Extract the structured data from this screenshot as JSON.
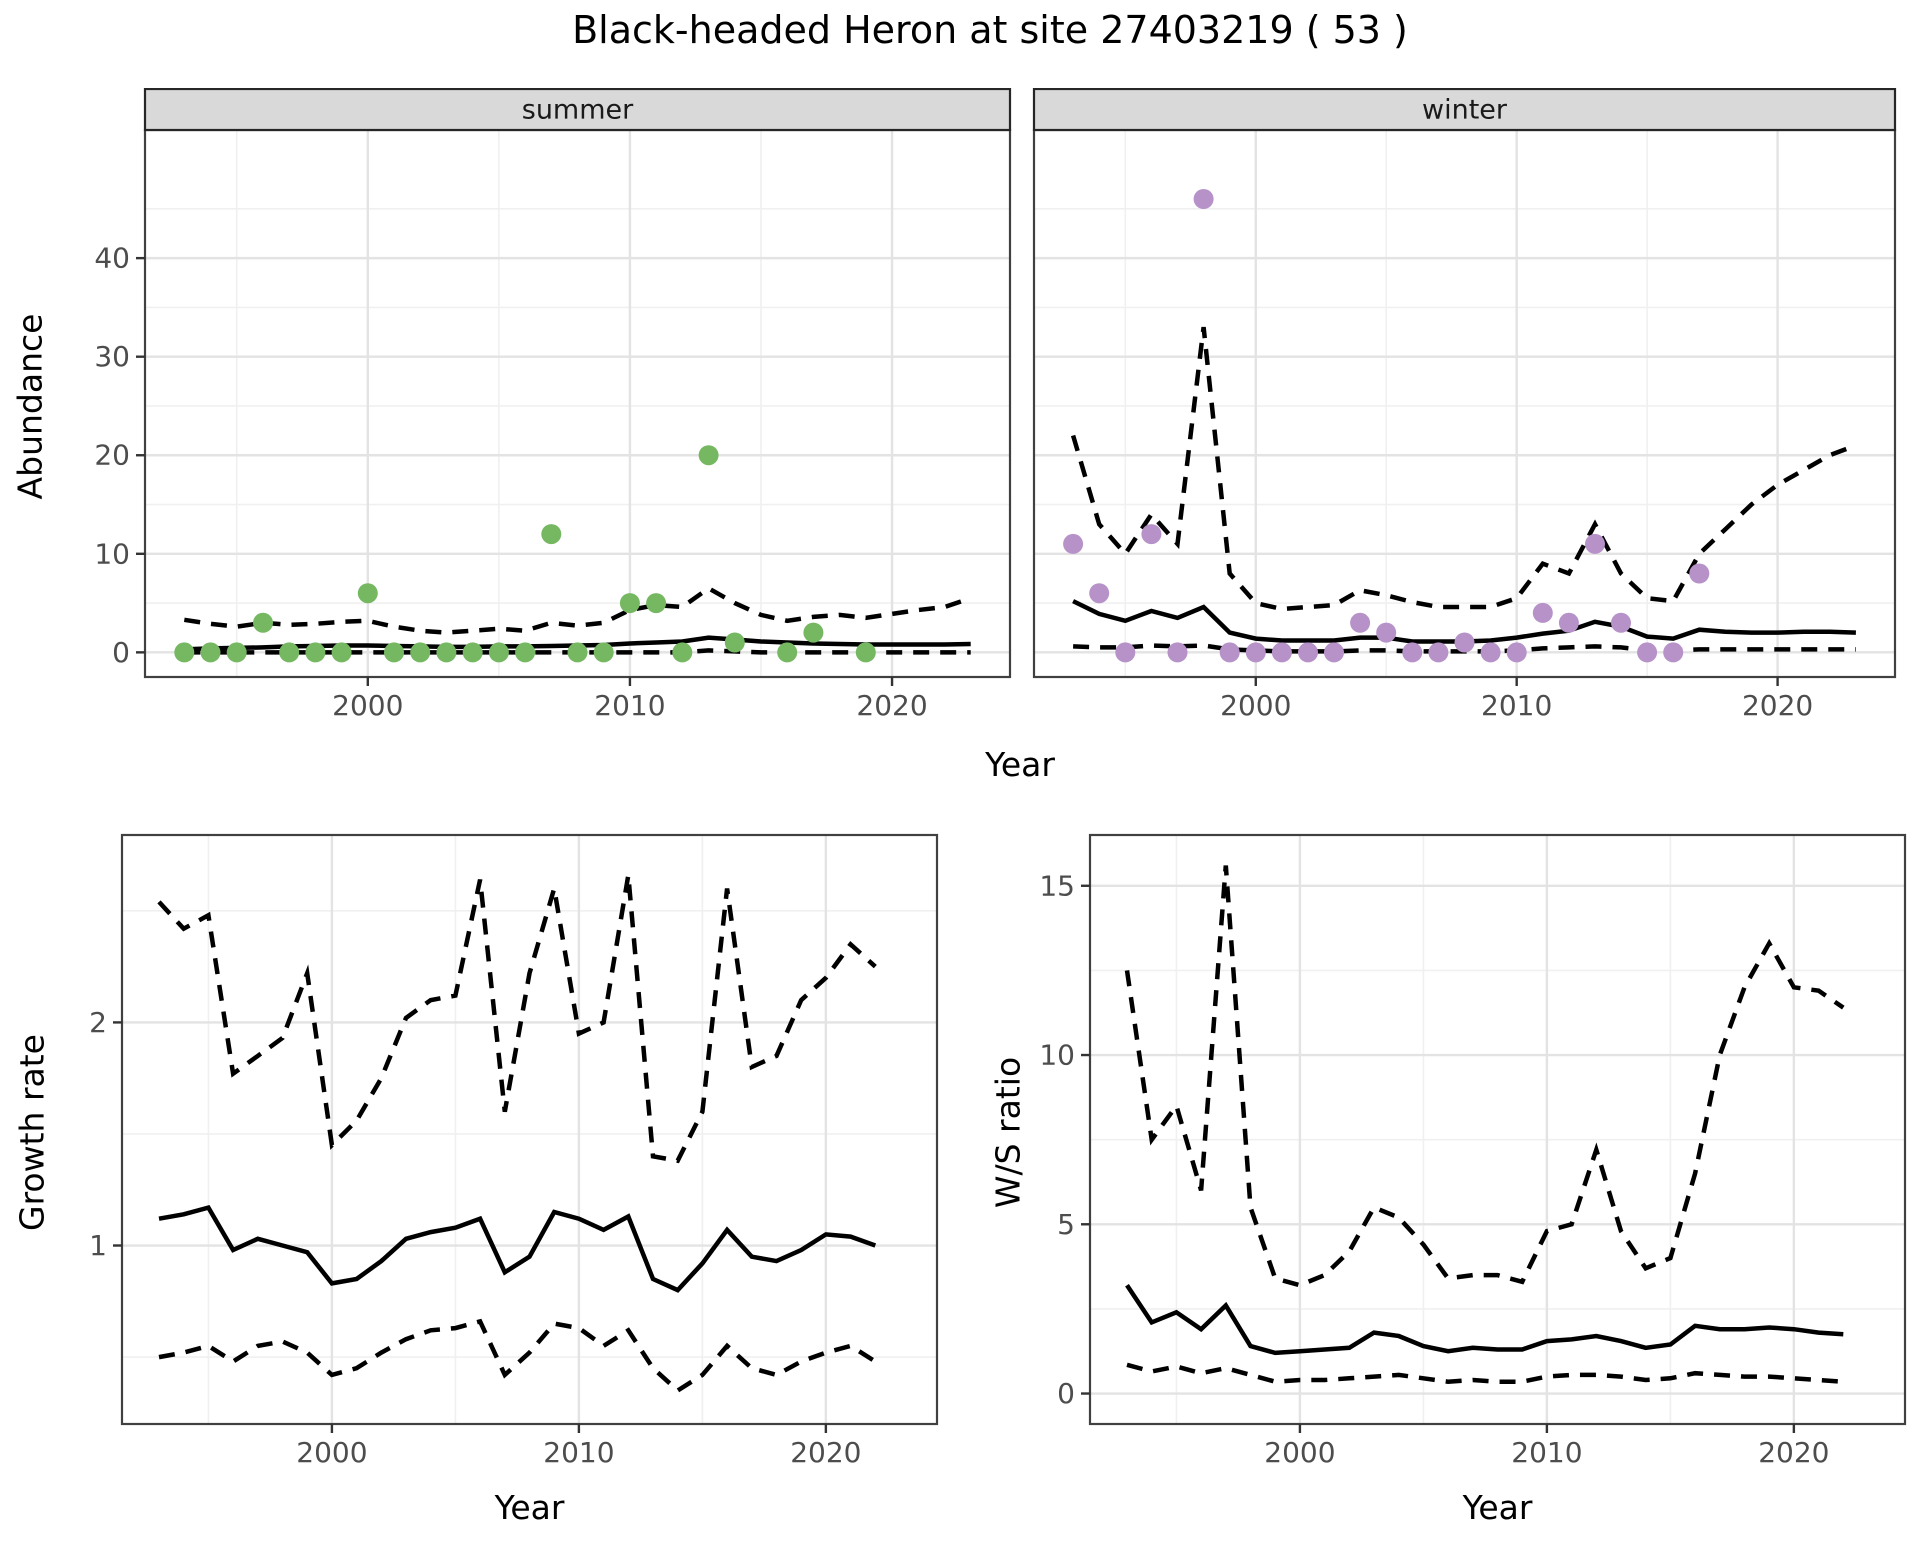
{
  "title": "Black-headed Heron at site 27403219 ( 53 )",
  "labels": {
    "x_axis": "Year",
    "abundance": "Abundance",
    "growth": "Growth rate",
    "ws": "W/S ratio"
  },
  "colors": {
    "summer_point": "#76b862",
    "winter_point": "#b692c8",
    "line": "#000000",
    "strip_bg": "#d9d9d9",
    "strip_border": "#262626",
    "grid_major": "#e3e3e3",
    "grid_minor": "#f0f0f0",
    "panel_border": "#404040",
    "tick_label": "#4d4d4d"
  },
  "chart_data": [
    {
      "id": "summer",
      "type": "scatter",
      "facet_label": "summer",
      "xlabel": "Year",
      "ylabel": "Abundance",
      "xlim": [
        1991.5,
        2024.5
      ],
      "ylim": [
        -2.5,
        53
      ],
      "xticks": [
        2000,
        2010,
        2020
      ],
      "xminor": [
        1995,
        2005,
        2015
      ],
      "yticks": [
        0,
        10,
        20,
        30,
        40
      ],
      "yminor": [
        5,
        15,
        25,
        35,
        45
      ],
      "show_ylabels": true,
      "point_color_key": "summer_point",
      "points": {
        "x": [
          1993,
          1994,
          1995,
          1996,
          1997,
          1998,
          1999,
          2000,
          2001,
          2002,
          2003,
          2004,
          2005,
          2006,
          2007,
          2008,
          2009,
          2010,
          2011,
          2012,
          2013,
          2014,
          2016,
          2017,
          2019
        ],
        "y": [
          0,
          0,
          0,
          3,
          0,
          0,
          0,
          6,
          0,
          0,
          0,
          0,
          0,
          0,
          12,
          0,
          0,
          5,
          5,
          0,
          20,
          1,
          0,
          2,
          0
        ]
      },
      "series": [
        {
          "name": "median",
          "style": "solid",
          "x": [
            1993,
            1994,
            1995,
            1996,
            1997,
            1998,
            1999,
            2000,
            2001,
            2002,
            2003,
            2004,
            2005,
            2006,
            2007,
            2008,
            2009,
            2010,
            2011,
            2012,
            2013,
            2014,
            2015,
            2016,
            2017,
            2018,
            2019,
            2020,
            2021,
            2022,
            2023
          ],
          "y": [
            0.3,
            0.4,
            0.45,
            0.5,
            0.6,
            0.65,
            0.7,
            0.7,
            0.65,
            0.6,
            0.55,
            0.55,
            0.6,
            0.6,
            0.65,
            0.7,
            0.75,
            0.9,
            1.0,
            1.1,
            1.5,
            1.3,
            1.1,
            1.0,
            0.9,
            0.85,
            0.8,
            0.8,
            0.8,
            0.8,
            0.85
          ]
        },
        {
          "name": "upper_ci",
          "style": "dashed",
          "x": [
            1993,
            1994,
            1995,
            1996,
            1997,
            1998,
            1999,
            2000,
            2001,
            2002,
            2003,
            2004,
            2005,
            2006,
            2007,
            2008,
            2009,
            2010,
            2011,
            2012,
            2013,
            2014,
            2015,
            2016,
            2017,
            2018,
            2019,
            2020,
            2021,
            2022,
            2023
          ],
          "y": [
            3.3,
            2.9,
            2.6,
            3.0,
            2.8,
            2.9,
            3.1,
            3.2,
            2.6,
            2.2,
            2.0,
            2.2,
            2.4,
            2.2,
            3.0,
            2.7,
            3.0,
            4.3,
            4.8,
            4.6,
            6.5,
            5.0,
            3.8,
            3.2,
            3.6,
            3.8,
            3.5,
            3.9,
            4.3,
            4.6,
            5.5
          ]
        },
        {
          "name": "lower_ci",
          "style": "dashed",
          "x": [
            1993,
            1994,
            1995,
            1996,
            1997,
            1998,
            1999,
            2000,
            2001,
            2002,
            2003,
            2004,
            2005,
            2006,
            2007,
            2008,
            2009,
            2010,
            2011,
            2012,
            2013,
            2014,
            2015,
            2016,
            2017,
            2018,
            2019,
            2020,
            2021,
            2022,
            2023
          ],
          "y": [
            0,
            0,
            0,
            0,
            0,
            0,
            0,
            0,
            0,
            0,
            0,
            0,
            0,
            0,
            0,
            0,
            0,
            0,
            0,
            0,
            0.2,
            0.1,
            0,
            0,
            0,
            0,
            0,
            0,
            0,
            0,
            0
          ]
        }
      ]
    },
    {
      "id": "winter",
      "type": "scatter",
      "facet_label": "winter",
      "xlabel": "Year",
      "ylabel": "Abundance",
      "xlim": [
        1991.5,
        2024.5
      ],
      "ylim": [
        -2.5,
        53
      ],
      "xticks": [
        2000,
        2010,
        2020
      ],
      "xminor": [
        1995,
        2005,
        2015
      ],
      "yticks": [
        0,
        10,
        20,
        30,
        40
      ],
      "yminor": [
        5,
        15,
        25,
        35,
        45
      ],
      "show_ylabels": false,
      "point_color_key": "winter_point",
      "points": {
        "x": [
          1993,
          1994,
          1995,
          1996,
          1997,
          1998,
          1999,
          2000,
          2001,
          2002,
          2003,
          2004,
          2005,
          2006,
          2007,
          2008,
          2009,
          2010,
          2011,
          2012,
          2013,
          2014,
          2015,
          2016,
          2017
        ],
        "y": [
          11,
          6,
          0,
          12,
          0,
          46,
          0,
          0,
          0,
          0,
          0,
          3,
          2,
          0,
          0,
          1,
          0,
          0,
          4,
          3,
          11,
          3,
          0,
          0,
          8
        ]
      },
      "series": [
        {
          "name": "median",
          "style": "solid",
          "x": [
            1993,
            1994,
            1995,
            1996,
            1997,
            1998,
            1999,
            2000,
            2001,
            2002,
            2003,
            2004,
            2005,
            2006,
            2007,
            2008,
            2009,
            2010,
            2011,
            2012,
            2013,
            2014,
            2015,
            2016,
            2017,
            2018,
            2019,
            2020,
            2021,
            2022,
            2023
          ],
          "y": [
            5.2,
            3.9,
            3.2,
            4.2,
            3.5,
            4.6,
            2.0,
            1.4,
            1.2,
            1.2,
            1.2,
            1.5,
            1.5,
            1.1,
            1.1,
            1.1,
            1.2,
            1.5,
            1.9,
            2.2,
            3.1,
            2.6,
            1.6,
            1.4,
            2.3,
            2.1,
            2.0,
            2.0,
            2.1,
            2.1,
            2.0
          ]
        },
        {
          "name": "upper_ci",
          "style": "dashed",
          "x": [
            1993,
            1994,
            1995,
            1996,
            1997,
            1998,
            1999,
            2000,
            2001,
            2002,
            2003,
            2004,
            2005,
            2006,
            2007,
            2008,
            2009,
            2010,
            2011,
            2012,
            2013,
            2014,
            2015,
            2016,
            2017,
            2018,
            2019,
            2020,
            2021,
            2022,
            2023
          ],
          "y": [
            22,
            13,
            10,
            14,
            11,
            33,
            8,
            5,
            4.4,
            4.6,
            4.8,
            6.3,
            5.8,
            5.1,
            4.6,
            4.6,
            4.6,
            5.5,
            9,
            8,
            13,
            8,
            5.5,
            5.2,
            10,
            12.5,
            15,
            17,
            18.5,
            20,
            21
          ]
        },
        {
          "name": "lower_ci",
          "style": "dashed",
          "x": [
            1993,
            1994,
            1995,
            1996,
            1997,
            1998,
            1999,
            2000,
            2001,
            2002,
            2003,
            2004,
            2005,
            2006,
            2007,
            2008,
            2009,
            2010,
            2011,
            2012,
            2013,
            2014,
            2015,
            2016,
            2017,
            2018,
            2019,
            2020,
            2021,
            2022,
            2023
          ],
          "y": [
            0.6,
            0.5,
            0.5,
            0.7,
            0.6,
            0.7,
            0.3,
            0.2,
            0.1,
            0.1,
            0.1,
            0.2,
            0.2,
            0.1,
            0.1,
            0.1,
            0.1,
            0.2,
            0.4,
            0.5,
            0.6,
            0.5,
            0.2,
            0.2,
            0.3,
            0.3,
            0.3,
            0.3,
            0.3,
            0.3,
            0.3
          ]
        }
      ]
    },
    {
      "id": "growth",
      "type": "line",
      "facet_label": "",
      "xlabel": "Year",
      "ylabel": "Growth rate",
      "xlim": [
        1991.5,
        2024.5
      ],
      "ylim": [
        0.2,
        2.84
      ],
      "xticks": [
        2000,
        2010,
        2020
      ],
      "xminor": [
        1995,
        2005,
        2015
      ],
      "yticks": [
        1,
        2
      ],
      "yminor": [
        0.5,
        1.5,
        2.5
      ],
      "show_ylabels": true,
      "series": [
        {
          "name": "median",
          "style": "solid",
          "x": [
            1993,
            1994,
            1995,
            1996,
            1997,
            1998,
            1999,
            2000,
            2001,
            2002,
            2003,
            2004,
            2005,
            2006,
            2007,
            2008,
            2009,
            2010,
            2011,
            2012,
            2013,
            2014,
            2015,
            2016,
            2017,
            2018,
            2019,
            2020,
            2021,
            2022
          ],
          "y": [
            1.12,
            1.14,
            1.17,
            0.98,
            1.03,
            1.0,
            0.97,
            0.83,
            0.85,
            0.93,
            1.03,
            1.06,
            1.08,
            1.12,
            0.88,
            0.95,
            1.15,
            1.12,
            1.07,
            1.13,
            0.85,
            0.8,
            0.92,
            1.07,
            0.95,
            0.93,
            0.98,
            1.05,
            1.04,
            1.0
          ]
        },
        {
          "name": "upper_ci",
          "style": "dashed",
          "x": [
            1993,
            1994,
            1995,
            1996,
            1997,
            1998,
            1999,
            2000,
            2001,
            2002,
            2003,
            2004,
            2005,
            2006,
            2007,
            2008,
            2009,
            2010,
            2011,
            2012,
            2013,
            2014,
            2015,
            2016,
            2017,
            2018,
            2019,
            2020,
            2021,
            2022
          ],
          "y": [
            2.54,
            2.42,
            2.48,
            1.77,
            1.85,
            1.93,
            2.22,
            1.45,
            1.56,
            1.75,
            2.02,
            2.1,
            2.12,
            2.64,
            1.6,
            2.22,
            2.6,
            1.95,
            2.0,
            2.66,
            1.4,
            1.38,
            1.6,
            2.6,
            1.8,
            1.85,
            2.1,
            2.2,
            2.35,
            2.25
          ]
        },
        {
          "name": "lower_ci",
          "style": "dashed",
          "x": [
            1993,
            1994,
            1995,
            1996,
            1997,
            1998,
            1999,
            2000,
            2001,
            2002,
            2003,
            2004,
            2005,
            2006,
            2007,
            2008,
            2009,
            2010,
            2011,
            2012,
            2013,
            2014,
            2015,
            2016,
            2017,
            2018,
            2019,
            2020,
            2021,
            2022
          ],
          "y": [
            0.5,
            0.52,
            0.55,
            0.48,
            0.55,
            0.57,
            0.52,
            0.42,
            0.45,
            0.52,
            0.58,
            0.62,
            0.63,
            0.66,
            0.42,
            0.52,
            0.65,
            0.63,
            0.55,
            0.62,
            0.45,
            0.35,
            0.42,
            0.55,
            0.45,
            0.42,
            0.48,
            0.52,
            0.55,
            0.48
          ]
        }
      ]
    },
    {
      "id": "ws",
      "type": "line",
      "facet_label": "",
      "xlabel": "Year",
      "ylabel": "W/S ratio",
      "xlim": [
        1991.5,
        2024.5
      ],
      "ylim": [
        -0.9,
        16.5
      ],
      "xticks": [
        2000,
        2010,
        2020
      ],
      "xminor": [
        1995,
        2005,
        2015
      ],
      "yticks": [
        0,
        5,
        10,
        15
      ],
      "yminor": [
        2.5,
        7.5,
        12.5
      ],
      "show_ylabels": true,
      "series": [
        {
          "name": "median",
          "style": "solid",
          "x": [
            1993,
            1994,
            1995,
            1996,
            1997,
            1998,
            1999,
            2000,
            2001,
            2002,
            2003,
            2004,
            2005,
            2006,
            2007,
            2008,
            2009,
            2010,
            2011,
            2012,
            2013,
            2014,
            2015,
            2016,
            2017,
            2018,
            2019,
            2020,
            2021,
            2022
          ],
          "y": [
            3.2,
            2.1,
            2.4,
            1.9,
            2.6,
            1.4,
            1.2,
            1.25,
            1.3,
            1.35,
            1.8,
            1.7,
            1.4,
            1.25,
            1.35,
            1.3,
            1.3,
            1.55,
            1.6,
            1.7,
            1.55,
            1.35,
            1.45,
            2.0,
            1.9,
            1.9,
            1.95,
            1.9,
            1.8,
            1.75
          ]
        },
        {
          "name": "upper_ci",
          "style": "dashed",
          "x": [
            1993,
            1994,
            1995,
            1996,
            1997,
            1998,
            1999,
            2000,
            2001,
            2002,
            2003,
            2004,
            2005,
            2006,
            2007,
            2008,
            2009,
            2010,
            2011,
            2012,
            2013,
            2014,
            2015,
            2016,
            2017,
            2018,
            2019,
            2020,
            2021,
            2022
          ],
          "y": [
            12.5,
            7.5,
            8.5,
            6.0,
            15.6,
            5.5,
            3.4,
            3.2,
            3.5,
            4.2,
            5.5,
            5.2,
            4.4,
            3.4,
            3.5,
            3.5,
            3.3,
            4.8,
            5.0,
            7.2,
            4.8,
            3.7,
            4.0,
            6.5,
            10.0,
            12.0,
            13.3,
            12.0,
            11.9,
            11.4
          ]
        },
        {
          "name": "lower_ci",
          "style": "dashed",
          "x": [
            1993,
            1994,
            1995,
            1996,
            1997,
            1998,
            1999,
            2000,
            2001,
            2002,
            2003,
            2004,
            2005,
            2006,
            2007,
            2008,
            2009,
            2010,
            2011,
            2012,
            2013,
            2014,
            2015,
            2016,
            2017,
            2018,
            2019,
            2020,
            2021,
            2022
          ],
          "y": [
            0.85,
            0.65,
            0.8,
            0.6,
            0.75,
            0.55,
            0.35,
            0.4,
            0.4,
            0.45,
            0.5,
            0.55,
            0.45,
            0.35,
            0.4,
            0.35,
            0.35,
            0.5,
            0.55,
            0.55,
            0.5,
            0.4,
            0.45,
            0.6,
            0.55,
            0.5,
            0.5,
            0.45,
            0.4,
            0.35
          ]
        }
      ]
    }
  ]
}
